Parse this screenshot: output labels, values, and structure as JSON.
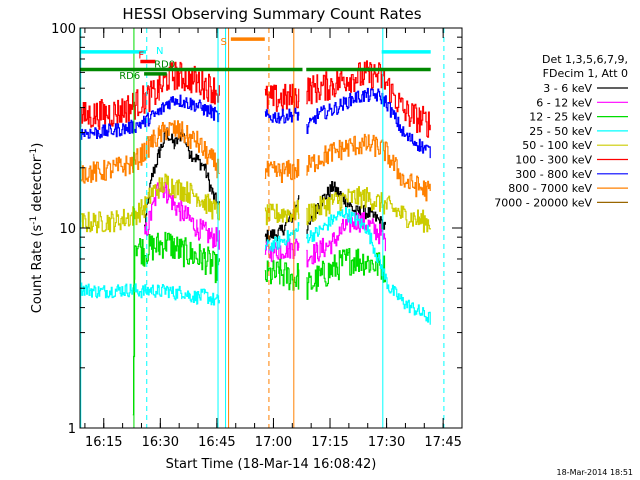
{
  "chart_data": {
    "type": "line",
    "title": "HESSI Observing Summary Count Rates",
    "xlabel": "Start Time (18-Mar-14 16:08:42)",
    "ylabel_parts": {
      "prefix": "Count Rate (s",
      "exp": "-1",
      "suffix": " detector",
      "suffix_exp": "-1",
      "close": ")"
    },
    "y_scale": "log",
    "ylim": [
      1,
      100
    ],
    "yticks": [
      {
        "value": 1,
        "label": "1"
      },
      {
        "value": 10,
        "label": "10"
      },
      {
        "value": 100,
        "label": "100"
      }
    ],
    "x_unit": "minutes since 16:08:42",
    "xlim": [
      0,
      101.3
    ],
    "xticks": [
      {
        "value": 6.3,
        "label": "16:15"
      },
      {
        "value": 21.3,
        "label": "16:30"
      },
      {
        "value": 36.3,
        "label": "16:45"
      },
      {
        "value": 51.3,
        "label": "17:00"
      },
      {
        "value": 66.3,
        "label": "17:15"
      },
      {
        "value": 81.3,
        "label": "17:30"
      },
      {
        "value": 96.3,
        "label": "17:45"
      }
    ],
    "legend": {
      "header_lines": [
        "Det 1,3,5,6,7,9,",
        "FDecim 1, Att 0"
      ],
      "placement": "right"
    },
    "data_gaps": [
      [
        37,
        49
      ],
      [
        58,
        59
      ],
      [
        59,
        60
      ]
    ],
    "series": [
      {
        "name": "3 - 6 keV",
        "color": "#000000",
        "points": [
          [
            17,
            10
          ],
          [
            19,
            18
          ],
          [
            21,
            24
          ],
          [
            23,
            30
          ],
          [
            25,
            26
          ],
          [
            27,
            30
          ],
          [
            29,
            24
          ],
          [
            31,
            22
          ],
          [
            33,
            20
          ],
          [
            35,
            15
          ],
          [
            36.5,
            13
          ],
          [
            49,
            9
          ],
          [
            53,
            9.5
          ],
          [
            57,
            12
          ],
          [
            58,
            15
          ],
          [
            60,
            9.5
          ],
          [
            63,
            13
          ],
          [
            67,
            16
          ],
          [
            70,
            14
          ],
          [
            73,
            12
          ],
          [
            76,
            12
          ],
          [
            79,
            11
          ],
          [
            81,
            10
          ]
        ]
      },
      {
        "name": "6 - 12 keV",
        "color": "#ff00ff",
        "points": [
          [
            17,
            9
          ],
          [
            19,
            12
          ],
          [
            21,
            17
          ],
          [
            23,
            15
          ],
          [
            25,
            13
          ],
          [
            27,
            12
          ],
          [
            29,
            11
          ],
          [
            31,
            10
          ],
          [
            33,
            9.5
          ],
          [
            35,
            9
          ],
          [
            36.5,
            8.8
          ],
          [
            49,
            7.5
          ],
          [
            53,
            7.8
          ],
          [
            57,
            8
          ],
          [
            58,
            8.5
          ],
          [
            60,
            7.2
          ],
          [
            63,
            7.6
          ],
          [
            67,
            8.5
          ],
          [
            70,
            10
          ],
          [
            73,
            11
          ],
          [
            76,
            10.5
          ],
          [
            79,
            9.5
          ],
          [
            81,
            8.6
          ]
        ]
      },
      {
        "name": "12 - 25 keV",
        "color": "#00dd00",
        "points": [
          [
            14,
            1
          ],
          [
            14.5,
            8.5
          ],
          [
            17,
            7.6
          ],
          [
            19,
            8
          ],
          [
            21,
            8.2
          ],
          [
            23,
            8.5
          ],
          [
            25,
            8
          ],
          [
            27,
            7.6
          ],
          [
            29,
            7.4
          ],
          [
            31,
            7.2
          ],
          [
            33,
            7
          ],
          [
            35,
            6.5
          ],
          [
            36.5,
            6.2
          ],
          [
            49,
            5.8
          ],
          [
            53,
            5.9
          ],
          [
            57,
            5.6
          ],
          [
            58,
            5.8
          ],
          [
            60,
            5
          ],
          [
            63,
            5.6
          ],
          [
            67,
            6.2
          ],
          [
            70,
            6.8
          ],
          [
            73,
            7
          ],
          [
            76,
            6.8
          ],
          [
            79,
            6.5
          ],
          [
            81,
            6.2
          ]
        ]
      },
      {
        "name": "25 - 50 keV",
        "color": "#00ffff",
        "points": [
          [
            0,
            5
          ],
          [
            5,
            4.8
          ],
          [
            10,
            4.9
          ],
          [
            14,
            4.9
          ],
          [
            17,
            4.8
          ],
          [
            19,
            4.9
          ],
          [
            21,
            4.8
          ],
          [
            23,
            4.9
          ],
          [
            25,
            4.7
          ],
          [
            27,
            4.8
          ],
          [
            29,
            4.6
          ],
          [
            31,
            4.5
          ],
          [
            33,
            4.6
          ],
          [
            35,
            4.4
          ],
          [
            36.5,
            4.3
          ],
          [
            49,
            8
          ],
          [
            53,
            8.5
          ],
          [
            57,
            9.5
          ],
          [
            58,
            10
          ],
          [
            60,
            9
          ],
          [
            63,
            9.5
          ],
          [
            67,
            11
          ],
          [
            70,
            12
          ],
          [
            73,
            11
          ],
          [
            76,
            10
          ],
          [
            79,
            7
          ],
          [
            82,
            5
          ],
          [
            86,
            4.2
          ],
          [
            90,
            3.8
          ],
          [
            93,
            3.5
          ]
        ]
      },
      {
        "name": "50 - 100 keV",
        "color": "#cccc00",
        "points": [
          [
            0,
            10.6
          ],
          [
            5,
            10.7
          ],
          [
            10,
            10.9
          ],
          [
            14,
            11.5
          ],
          [
            17,
            12.6
          ],
          [
            19,
            15
          ],
          [
            21,
            16
          ],
          [
            23,
            17
          ],
          [
            25,
            16
          ],
          [
            27,
            15.5
          ],
          [
            29,
            15
          ],
          [
            31,
            14.5
          ],
          [
            33,
            13.5
          ],
          [
            35,
            12.5
          ],
          [
            36.5,
            12
          ],
          [
            49,
            11.5
          ],
          [
            53,
            11.8
          ],
          [
            57,
            12
          ],
          [
            58,
            12.2
          ],
          [
            60,
            11.5
          ],
          [
            63,
            12.5
          ],
          [
            67,
            13.5
          ],
          [
            70,
            14
          ],
          [
            73,
            14.2
          ],
          [
            76,
            14.2
          ],
          [
            79,
            13.5
          ],
          [
            81,
            13
          ],
          [
            86,
            11.5
          ],
          [
            90,
            11
          ],
          [
            93,
            10.5
          ]
        ]
      },
      {
        "name": "100 - 300 keV",
        "color": "#ff0000",
        "points": [
          [
            0,
            36
          ],
          [
            5,
            37
          ],
          [
            10,
            38
          ],
          [
            14,
            41
          ],
          [
            17,
            44
          ],
          [
            19,
            46
          ],
          [
            21,
            49
          ],
          [
            23,
            56
          ],
          [
            25,
            58
          ],
          [
            27,
            57
          ],
          [
            29,
            56
          ],
          [
            31,
            54
          ],
          [
            33,
            52
          ],
          [
            35,
            50
          ],
          [
            36.5,
            48
          ],
          [
            49,
            44
          ],
          [
            53,
            44
          ],
          [
            57,
            45
          ],
          [
            58,
            46
          ],
          [
            59.5,
            37
          ],
          [
            60,
            49
          ],
          [
            63,
            50
          ],
          [
            67,
            52
          ],
          [
            70,
            56
          ],
          [
            73,
            57
          ],
          [
            76,
            58
          ],
          [
            79,
            58
          ],
          [
            81,
            53
          ],
          [
            86,
            38
          ],
          [
            90,
            35
          ],
          [
            93,
            33
          ]
        ]
      },
      {
        "name": "300 - 800 keV",
        "color": "#0000ff",
        "points": [
          [
            0,
            30
          ],
          [
            5,
            30
          ],
          [
            10,
            31
          ],
          [
            14,
            32
          ],
          [
            17,
            34
          ],
          [
            19,
            36
          ],
          [
            21,
            38
          ],
          [
            23,
            42
          ],
          [
            25,
            44
          ],
          [
            27,
            43
          ],
          [
            29,
            42
          ],
          [
            31,
            41
          ],
          [
            33,
            39
          ],
          [
            35,
            38
          ],
          [
            36.5,
            36
          ],
          [
            49,
            36
          ],
          [
            53,
            36
          ],
          [
            57,
            37
          ],
          [
            58,
            37
          ],
          [
            60,
            31
          ],
          [
            63,
            37
          ],
          [
            67,
            39
          ],
          [
            70,
            42
          ],
          [
            73,
            45
          ],
          [
            76,
            46
          ],
          [
            79,
            46
          ],
          [
            81,
            43
          ],
          [
            86,
            29
          ],
          [
            90,
            26
          ],
          [
            93,
            24
          ]
        ]
      },
      {
        "name": "800 - 7000 keV",
        "color": "#ff8000",
        "points": [
          [
            0,
            19
          ],
          [
            5,
            19
          ],
          [
            10,
            20
          ],
          [
            14,
            21
          ],
          [
            17,
            24
          ],
          [
            19,
            27
          ],
          [
            21,
            29
          ],
          [
            23,
            31
          ],
          [
            25,
            31
          ],
          [
            27,
            30
          ],
          [
            29,
            28
          ],
          [
            31,
            27
          ],
          [
            33,
            24
          ],
          [
            35,
            22
          ],
          [
            36.5,
            20
          ],
          [
            49,
            19
          ],
          [
            53,
            19
          ],
          [
            57,
            19.5
          ],
          [
            58,
            20
          ],
          [
            60,
            20
          ],
          [
            63,
            22
          ],
          [
            67,
            24
          ],
          [
            70,
            25
          ],
          [
            73,
            26
          ],
          [
            76,
            26
          ],
          [
            79,
            25.5
          ],
          [
            81,
            24
          ],
          [
            86,
            17
          ],
          [
            90,
            16
          ],
          [
            93,
            15
          ]
        ]
      },
      {
        "name": "7000 - 20000 keV",
        "color": "#996600",
        "points": []
      }
    ],
    "flags": [
      {
        "label": "N",
        "color": "#00ffff",
        "segments": [
          [
            0,
            17.5
          ],
          [
            80,
            93
          ]
        ],
        "level": 76
      },
      {
        "label": "S",
        "color": "#ff8000",
        "segments": [
          [
            40,
            49
          ]
        ],
        "level": 88
      },
      {
        "label": "F",
        "color": "#ff0000",
        "segments": [
          [
            16,
            20
          ]
        ],
        "level": 68
      },
      {
        "label": "RD0",
        "color": "#008800",
        "segments": [
          [
            0,
            59
          ],
          [
            60,
            93
          ]
        ],
        "level": 62
      },
      {
        "label": "RD6",
        "color": "#008800",
        "segments": [
          [
            17,
            23
          ]
        ],
        "level": 59
      }
    ],
    "vertical_markers": [
      {
        "x": 0.2,
        "color": "#00ffff",
        "style": "solid"
      },
      {
        "x": 17.7,
        "color": "#00ffff",
        "style": "dashed"
      },
      {
        "x": 36.6,
        "color": "#00ffff",
        "style": "solid"
      },
      {
        "x": 38.6,
        "color": "#00ffff",
        "style": "solid"
      },
      {
        "x": 39.4,
        "color": "#ff8000",
        "style": "solid"
      },
      {
        "x": 50.1,
        "color": "#ff8000",
        "style": "dashed"
      },
      {
        "x": 56.7,
        "color": "#ff8000",
        "style": "solid"
      },
      {
        "x": 80.3,
        "color": "#00ffff",
        "style": "solid"
      },
      {
        "x": 96.5,
        "color": "#00ffff",
        "style": "dashed"
      },
      {
        "x": 14.3,
        "color": "#00dd00",
        "style": "solid"
      }
    ],
    "timestamp": "18-Mar-2014 18:51"
  }
}
